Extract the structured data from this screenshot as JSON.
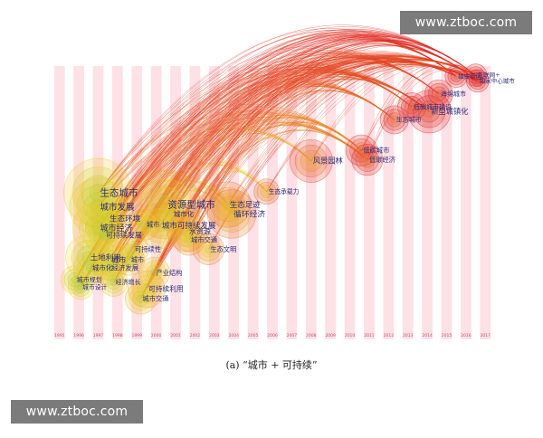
{
  "watermark": "www.ztboc.com",
  "caption": "(a) “城市 + 可持续”",
  "colors": {
    "stripe": "#fde1e6",
    "year_text": "#c0506a",
    "node_label": "#2a2a7a",
    "link_old": "#66cc44",
    "link_new": "#e02020"
  },
  "chart_data": {
    "type": "scatter",
    "x_axis_type": "year",
    "years": [
      "1995",
      "1996",
      "1997",
      "1998",
      "1999",
      "2000",
      "2001",
      "2002",
      "2003",
      "2004",
      "2005",
      "2006",
      "2007",
      "2008",
      "2009",
      "2010",
      "2011",
      "2012",
      "2013",
      "2014",
      "2015",
      "2016",
      "2017"
    ],
    "nodes": [
      {
        "label": "生态城市",
        "year": 1997,
        "row": 0.0,
        "size": 1.0
      },
      {
        "label": "城市发展",
        "year": 1997,
        "row": 0.12,
        "size": 0.8
      },
      {
        "label": "生态环境",
        "year": 1997.5,
        "row": 0.22,
        "size": 0.6
      },
      {
        "label": "城市经济",
        "year": 1997,
        "row": 0.3,
        "size": 0.7
      },
      {
        "label": "可持续发展",
        "year": 1997.3,
        "row": 0.36,
        "size": 0.5
      },
      {
        "label": "土地利用",
        "year": 1996.5,
        "row": 0.55,
        "size": 0.6
      },
      {
        "label": "城市",
        "year": 1997.6,
        "row": 0.57,
        "size": 0.5
      },
      {
        "label": "城市化",
        "year": 1996.6,
        "row": 0.64,
        "size": 0.4
      },
      {
        "label": "经济发展",
        "year": 1997.6,
        "row": 0.64,
        "size": 0.4
      },
      {
        "label": "城市规划",
        "year": 1995.8,
        "row": 0.74,
        "size": 0.3
      },
      {
        "label": "城市设计",
        "year": 1996.1,
        "row": 0.8,
        "size": 0.25
      },
      {
        "label": "经济增长",
        "year": 1997.8,
        "row": 0.76,
        "size": 0.3
      },
      {
        "label": "资源型城市",
        "year": 2000.5,
        "row": 0.1,
        "size": 1.0
      },
      {
        "label": "城市化",
        "year": 2000.8,
        "row": 0.18,
        "size": 0.4
      },
      {
        "label": "城市可持续发展",
        "year": 2000.2,
        "row": 0.28,
        "size": 0.6
      },
      {
        "label": "水资源",
        "year": 2001.6,
        "row": 0.33,
        "size": 0.5
      },
      {
        "label": "城市交通",
        "year": 2001.7,
        "row": 0.4,
        "size": 0.35
      },
      {
        "label": "城市",
        "year": 1999.4,
        "row": 0.27,
        "size": 0.35
      },
      {
        "label": "可持续性",
        "year": 1998.8,
        "row": 0.48,
        "size": 0.35
      },
      {
        "label": "城市",
        "year": 1998.6,
        "row": 0.57,
        "size": 0.35
      },
      {
        "label": "产业结构",
        "year": 1999.9,
        "row": 0.68,
        "size": 0.35
      },
      {
        "label": "可持续利用",
        "year": 1999.5,
        "row": 0.82,
        "size": 0.45
      },
      {
        "label": "城市交通",
        "year": 1999.2,
        "row": 0.9,
        "size": 0.35
      },
      {
        "label": "生态文明",
        "year": 2002.7,
        "row": 0.48,
        "size": 0.35
      },
      {
        "label": "生态足迹",
        "year": 2003.7,
        "row": 0.1,
        "size": 0.6
      },
      {
        "label": "循环经济",
        "year": 2003.9,
        "row": 0.18,
        "size": 0.65
      },
      {
        "label": "生态承载力",
        "year": 2005.7,
        "row": -0.01,
        "size": 0.25
      },
      {
        "label": "风景园林",
        "year": 2008.0,
        "row": -0.27,
        "size": 0.55
      },
      {
        "label": "低碳城市",
        "year": 2010.6,
        "row": -0.36,
        "size": 0.35
      },
      {
        "label": "低碳经济",
        "year": 2010.9,
        "row": -0.28,
        "size": 0.35
      },
      {
        "label": "生态城市",
        "year": 2012.3,
        "row": -0.62,
        "size": 0.3
      },
      {
        "label": "低碳城市建设",
        "year": 2013.2,
        "row": -0.73,
        "size": 0.3
      },
      {
        "label": "新型城镇化",
        "year": 2014.1,
        "row": -0.69,
        "size": 0.55
      },
      {
        "label": "海绵城市",
        "year": 2014.6,
        "row": -0.84,
        "size": 0.3
      },
      {
        "label": "互联网+",
        "year": 2016.5,
        "row": -1.0,
        "size": 0.2
      },
      {
        "label": "国家中心城市",
        "year": 2016.6,
        "row": -0.95,
        "size": 0.2
      },
      {
        "label": "雄安新区",
        "year": 2015.5,
        "row": -0.99,
        "size": 0.2
      }
    ]
  }
}
